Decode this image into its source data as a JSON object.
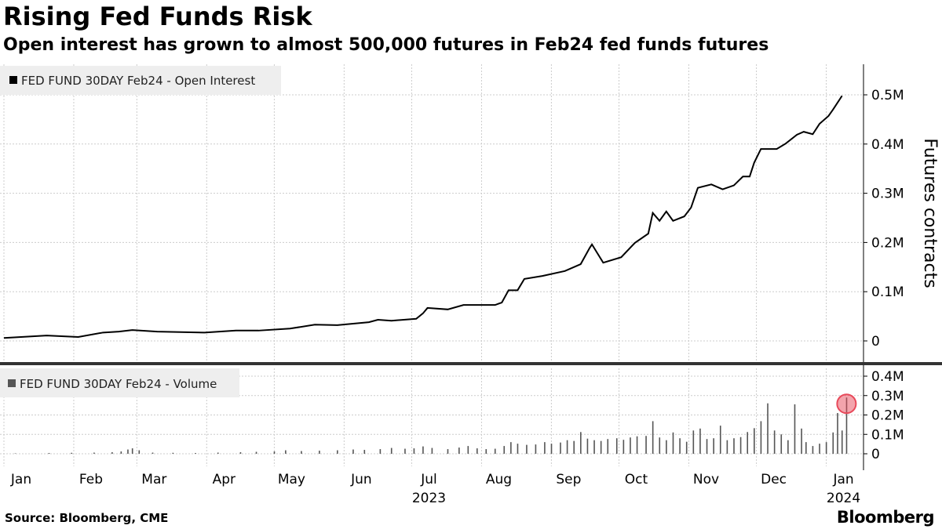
{
  "title": "Rising Fed Funds Risk",
  "subtitle": "Open interest has grown to almost 500,000 futures in Feb24 fed funds futures",
  "source": "Source: Bloomberg, CME",
  "logo": "Bloomberg",
  "colors": {
    "line": "#000000",
    "bar": "#555555",
    "highlight": "#e8495a",
    "grid": "#cccccc"
  },
  "chart_data": [
    {
      "type": "line",
      "title": "FED FUND 30DAY Feb24 - Open Interest",
      "legend": "FED FUND 30DAY Feb24 - Open Interest",
      "ylabel": "Futures contracts",
      "ylim": [
        0,
        500000
      ],
      "yticks": [
        {
          "v": 0,
          "label": "0"
        },
        {
          "v": 100000,
          "label": "0.1M"
        },
        {
          "v": 200000,
          "label": "0.2M"
        },
        {
          "v": 300000,
          "label": "0.3M"
        },
        {
          "v": 400000,
          "label": "0.4M"
        },
        {
          "v": 500000,
          "label": "0.5M"
        }
      ],
      "x_unit": "days since 2023-01-01",
      "points": [
        [
          0,
          6000
        ],
        [
          19,
          11000
        ],
        [
          33,
          8000
        ],
        [
          44,
          17000
        ],
        [
          51,
          19000
        ],
        [
          57,
          22000
        ],
        [
          68,
          19000
        ],
        [
          89,
          17000
        ],
        [
          103,
          21000
        ],
        [
          113,
          21000
        ],
        [
          127,
          25000
        ],
        [
          138,
          33000
        ],
        [
          148,
          32000
        ],
        [
          162,
          38000
        ],
        [
          166,
          43000
        ],
        [
          172,
          41000
        ],
        [
          183,
          45000
        ],
        [
          186,
          56000
        ],
        [
          188,
          67000
        ],
        [
          197,
          64000
        ],
        [
          204,
          73000
        ],
        [
          218,
          73000
        ],
        [
          221,
          78000
        ],
        [
          224,
          103000
        ],
        [
          228,
          103000
        ],
        [
          231,
          126000
        ],
        [
          239,
          132000
        ],
        [
          249,
          142000
        ],
        [
          256,
          156000
        ],
        [
          260,
          189000
        ],
        [
          261,
          196000
        ],
        [
          266,
          159000
        ],
        [
          274,
          170000
        ],
        [
          280,
          199000
        ],
        [
          286,
          218000
        ],
        [
          288,
          260000
        ],
        [
          291,
          244000
        ],
        [
          294,
          263000
        ],
        [
          297,
          244000
        ],
        [
          302,
          253000
        ],
        [
          305,
          271000
        ],
        [
          308,
          311000
        ],
        [
          314,
          318000
        ],
        [
          319,
          308000
        ],
        [
          324,
          316000
        ],
        [
          328,
          334000
        ],
        [
          331,
          334000
        ],
        [
          333,
          362000
        ],
        [
          336,
          390000
        ],
        [
          343,
          390000
        ],
        [
          347,
          401000
        ],
        [
          352,
          419000
        ],
        [
          355,
          425000
        ],
        [
          359,
          420000
        ],
        [
          362,
          441000
        ],
        [
          366,
          457000
        ],
        [
          368,
          470000
        ],
        [
          372,
          498000
        ]
      ]
    },
    {
      "type": "bar",
      "title": "FED FUND 30DAY Feb24 - Volume",
      "legend": "FED FUND 30DAY Feb24 - Volume",
      "ylim": [
        0,
        400000
      ],
      "yticks": [
        {
          "v": 0,
          "label": "0"
        },
        {
          "v": 100000,
          "label": "0.1M"
        },
        {
          "v": 200000,
          "label": "0.2M"
        },
        {
          "v": 300000,
          "label": "0.3M"
        },
        {
          "v": 400000,
          "label": "0.4M"
        }
      ],
      "highlight_day": 374,
      "bars": [
        [
          5,
          2000
        ],
        [
          20,
          4000
        ],
        [
          30,
          5000
        ],
        [
          40,
          6000
        ],
        [
          48,
          8000
        ],
        [
          52,
          12000
        ],
        [
          55,
          22000
        ],
        [
          57,
          28000
        ],
        [
          60,
          18000
        ],
        [
          66,
          6000
        ],
        [
          75,
          5000
        ],
        [
          85,
          4000
        ],
        [
          95,
          6000
        ],
        [
          105,
          8000
        ],
        [
          112,
          10000
        ],
        [
          120,
          12000
        ],
        [
          125,
          18000
        ],
        [
          132,
          14000
        ],
        [
          140,
          16000
        ],
        [
          148,
          18000
        ],
        [
          155,
          22000
        ],
        [
          160,
          20000
        ],
        [
          167,
          24000
        ],
        [
          172,
          30000
        ],
        [
          178,
          26000
        ],
        [
          182,
          28000
        ],
        [
          186,
          38000
        ],
        [
          190,
          30000
        ],
        [
          197,
          24000
        ],
        [
          202,
          32000
        ],
        [
          206,
          40000
        ],
        [
          210,
          28000
        ],
        [
          214,
          24000
        ],
        [
          218,
          26000
        ],
        [
          222,
          40000
        ],
        [
          225,
          60000
        ],
        [
          228,
          52000
        ],
        [
          232,
          46000
        ],
        [
          236,
          48000
        ],
        [
          240,
          60000
        ],
        [
          243,
          52000
        ],
        [
          247,
          58000
        ],
        [
          250,
          70000
        ],
        [
          253,
          66000
        ],
        [
          256,
          112000
        ],
        [
          259,
          78000
        ],
        [
          262,
          70000
        ],
        [
          265,
          66000
        ],
        [
          268,
          76000
        ],
        [
          272,
          80000
        ],
        [
          275,
          72000
        ],
        [
          278,
          84000
        ],
        [
          281,
          90000
        ],
        [
          285,
          92000
        ],
        [
          288,
          168000
        ],
        [
          291,
          84000
        ],
        [
          294,
          70000
        ],
        [
          297,
          110000
        ],
        [
          300,
          80000
        ],
        [
          303,
          62000
        ],
        [
          306,
          120000
        ],
        [
          309,
          130000
        ],
        [
          312,
          76000
        ],
        [
          315,
          80000
        ],
        [
          318,
          145000
        ],
        [
          321,
          70000
        ],
        [
          324,
          80000
        ],
        [
          327,
          86000
        ],
        [
          330,
          112000
        ],
        [
          333,
          132000
        ],
        [
          336,
          168000
        ],
        [
          339,
          260000
        ],
        [
          342,
          120000
        ],
        [
          345,
          100000
        ],
        [
          348,
          70000
        ],
        [
          351,
          255000
        ],
        [
          354,
          130000
        ],
        [
          356,
          60000
        ],
        [
          359,
          40000
        ],
        [
          362,
          52000
        ],
        [
          365,
          60000
        ],
        [
          368,
          110000
        ],
        [
          370,
          210000
        ],
        [
          372,
          120000
        ],
        [
          374,
          290000
        ]
      ]
    }
  ],
  "x_axis": {
    "months": [
      "Jan",
      "Feb",
      "Mar",
      "Apr",
      "May",
      "Jun",
      "Jul",
      "Aug",
      "Sep",
      "Oct",
      "Nov",
      "Dec",
      "Jan"
    ],
    "month_start_days": [
      0,
      31,
      59,
      90,
      120,
      151,
      181,
      212,
      243,
      273,
      304,
      334,
      365
    ],
    "years": [
      {
        "label": "2023",
        "day": 181
      },
      {
        "label": "2024",
        "day": 365
      }
    ]
  }
}
